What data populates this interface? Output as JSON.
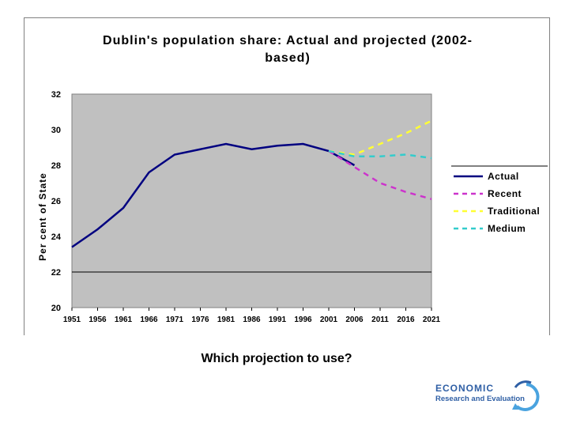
{
  "caption": "Which projection to use?",
  "logo": {
    "line1": "ECONOMIC",
    "line2": "Research and Evaluation"
  },
  "chart_data": {
    "type": "line",
    "title": "Dublin's population share: Actual and projected (2002-based)",
    "title_lines": [
      "Dublin's population share: Actual and projected (2002-",
      "based)"
    ],
    "xlabel": "",
    "ylabel": "Per cent of State",
    "ylim": [
      20,
      32
    ],
    "yticks": [
      "20",
      "22",
      "24",
      "26",
      "28",
      "30",
      "32"
    ],
    "xticks": [
      "1951",
      "1956",
      "1961",
      "1966",
      "1971",
      "1976",
      "1981",
      "1986",
      "1991",
      "1996",
      "2001",
      "2006",
      "2011",
      "2016",
      "2021"
    ],
    "plot_bg": "#c0c0c0",
    "reference_line": 22,
    "legend_position": "right",
    "series": [
      {
        "name": "Actual",
        "color": "#000080",
        "dash": "solid",
        "x": [
          1951,
          1956,
          1961,
          1966,
          1971,
          1976,
          1981,
          1986,
          1991,
          1996,
          2001,
          2006
        ],
        "y": [
          23.4,
          24.4,
          25.6,
          27.6,
          28.6,
          28.9,
          29.2,
          28.9,
          29.1,
          29.2,
          28.8,
          28.0
        ]
      },
      {
        "name": "Recent",
        "color": "#cc33cc",
        "dash": "dashed",
        "x": [
          2001,
          2006,
          2011,
          2016,
          2021
        ],
        "y": [
          28.8,
          27.9,
          27.0,
          26.5,
          26.1
        ]
      },
      {
        "name": "Traditional",
        "color": "#ffff33",
        "dash": "dashed",
        "x": [
          2001,
          2006,
          2011,
          2016,
          2021
        ],
        "y": [
          28.8,
          28.6,
          29.2,
          29.8,
          30.5
        ]
      },
      {
        "name": "Medium",
        "color": "#33cccc",
        "dash": "dashed",
        "x": [
          2001,
          2006,
          2011,
          2016,
          2021
        ],
        "y": [
          28.8,
          28.5,
          28.5,
          28.6,
          28.4
        ]
      }
    ]
  }
}
